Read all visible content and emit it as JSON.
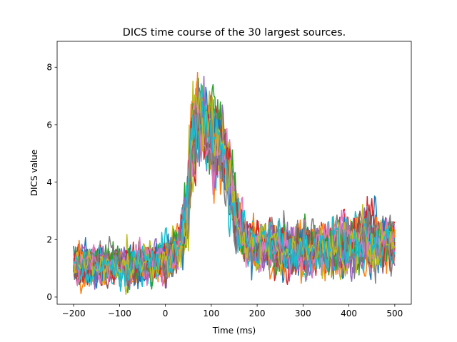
{
  "chart_data": {
    "type": "line",
    "title": "DICS time course of the 30 largest sources.",
    "xlabel": "Time (ms)",
    "ylabel": "DICS value",
    "xlim": [
      -236,
      536
    ],
    "ylim": [
      -0.25,
      8.9
    ],
    "x_ticks": [
      -200,
      -100,
      0,
      100,
      200,
      300,
      400,
      500
    ],
    "x_tick_labels": [
      "−200",
      "−100",
      "0",
      "100",
      "200",
      "300",
      "400",
      "500"
    ],
    "y_ticks": [
      0,
      2,
      4,
      6,
      8
    ],
    "y_tick_labels": [
      "0",
      "2",
      "4",
      "6",
      "8"
    ],
    "grid": false,
    "n_series": 30,
    "series_colors": [
      "#1f77b4",
      "#ff7f0e",
      "#2ca02c",
      "#d62728",
      "#9467bd",
      "#8c564b",
      "#e377c2",
      "#7f7f7f",
      "#bcbd22",
      "#17becf"
    ],
    "x_range": [
      -200,
      500
    ],
    "x_step": 2,
    "envelope": {
      "description": "approximate mean time course of sources",
      "x": [
        -200,
        -50,
        -10,
        20,
        45,
        60,
        75,
        100,
        130,
        155,
        175,
        250,
        350,
        400,
        450,
        500
      ],
      "mean": [
        1.1,
        1.1,
        1.2,
        1.5,
        2.6,
        5.8,
        6.2,
        5.6,
        5.0,
        2.8,
        1.9,
        1.6,
        1.7,
        1.9,
        2.0,
        1.8
      ],
      "spread": [
        0.5,
        0.5,
        0.5,
        0.6,
        0.9,
        1.2,
        1.1,
        1.1,
        1.0,
        0.8,
        0.6,
        0.6,
        0.7,
        0.7,
        0.8,
        0.6
      ]
    }
  }
}
